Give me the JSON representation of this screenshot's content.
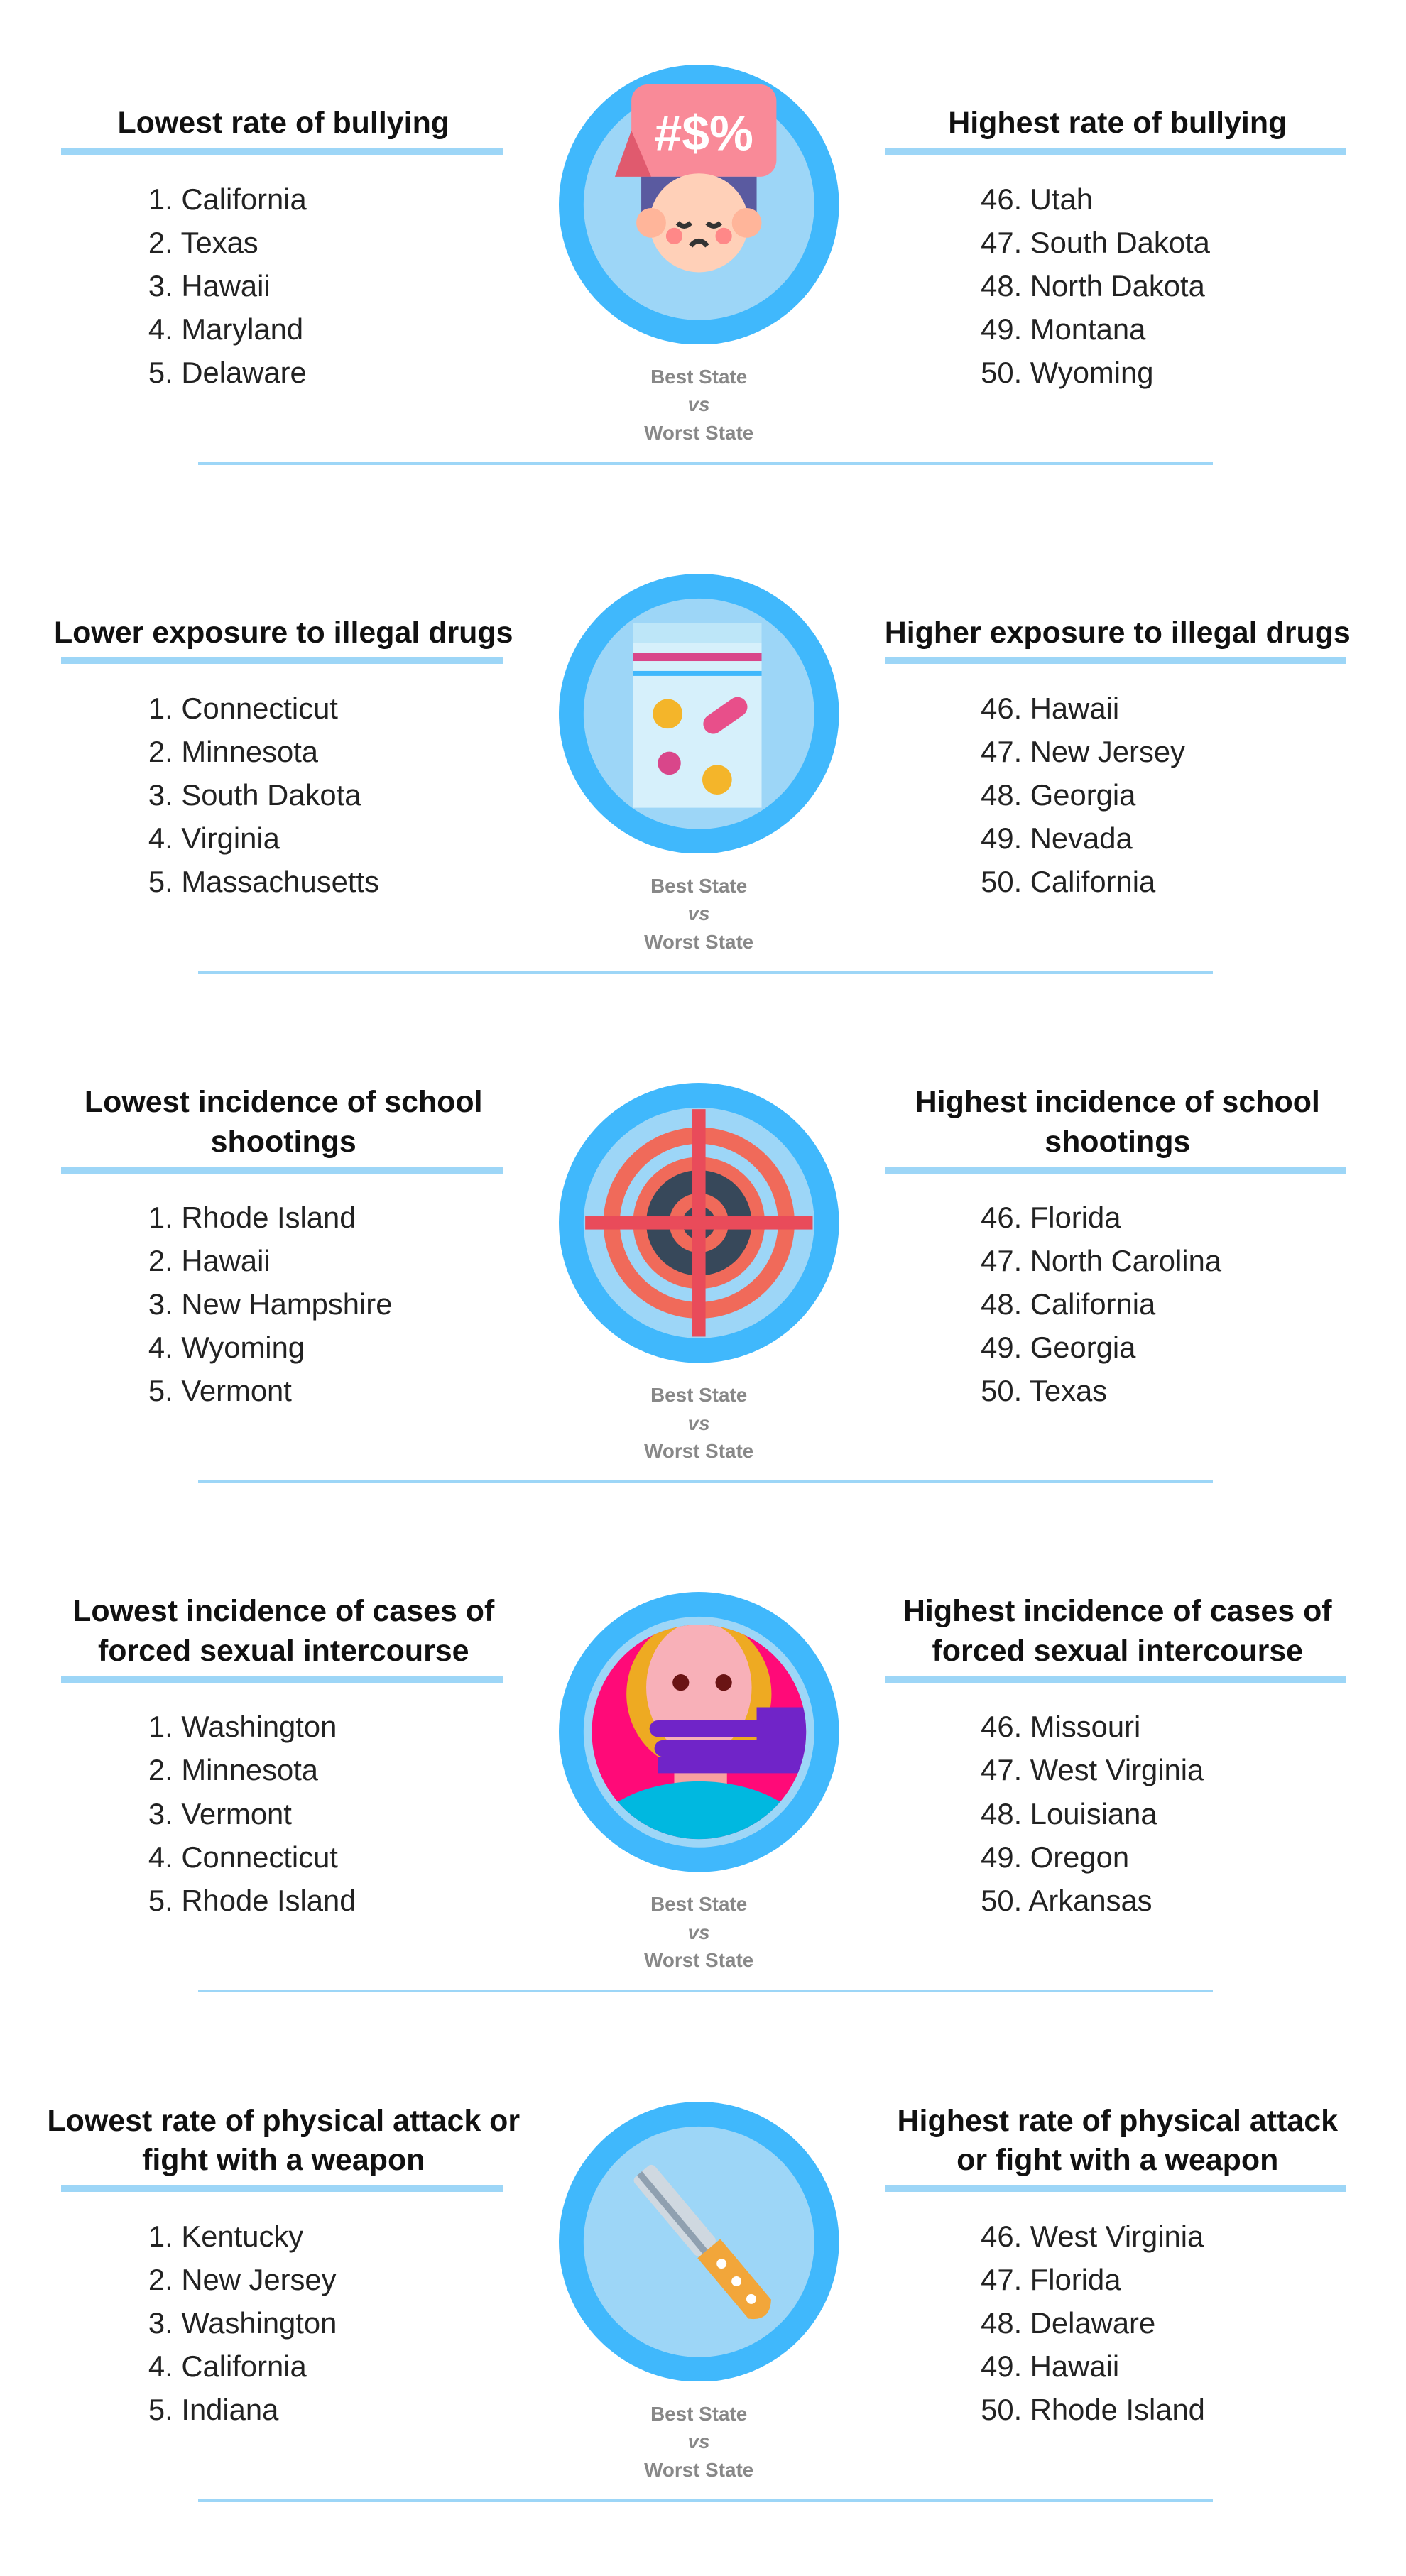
{
  "colors": {
    "accent": "#40b8fc",
    "accent_light": "#9dd6f7",
    "caption": "#888888"
  },
  "caption": {
    "best": "Best State",
    "vs": "vs",
    "worst": "Worst State"
  },
  "sections": [
    {
      "icon": "bullying-speech-bubble-icon",
      "left_title": "Lowest rate of bullying",
      "right_title": "Highest rate of bullying",
      "best": [
        "1. California",
        "2. Texas",
        "3. Hawaii",
        "4. Maryland",
        "5. Delaware"
      ],
      "worst": [
        "46. Utah",
        "47. South Dakota",
        "48. North Dakota",
        "49. Montana",
        "50. Wyoming"
      ]
    },
    {
      "icon": "drug-pills-bag-icon",
      "left_title": "Lower exposure to illegal drugs",
      "right_title": "Higher exposure to illegal drugs",
      "best": [
        "1. Connecticut",
        "2. Minnesota",
        "3. South Dakota",
        "4. Virginia",
        "5. Massachusetts"
      ],
      "worst": [
        "46. Hawaii",
        "47. New Jersey",
        "48. Georgia",
        "49. Nevada",
        "50. California"
      ]
    },
    {
      "icon": "target-crosshair-icon",
      "left_title": "Lowest incidence of school shootings",
      "right_title": "Highest incidence of school shootings",
      "best": [
        "1. Rhode Island",
        "2. Hawaii",
        "3. New Hampshire",
        "4. Wyoming",
        "5. Vermont"
      ],
      "worst": [
        "46. Florida",
        "47. North Carolina",
        "48. California",
        "49. Georgia",
        "50. Texas"
      ]
    },
    {
      "icon": "hand-over-mouth-icon",
      "left_title": "Lowest incidence of cases of forced sexual intercourse",
      "right_title": "Highest incidence of cases of forced sexual intercourse",
      "best": [
        "1. Washington",
        "2. Minnesota",
        "3. Vermont",
        "4. Connecticut",
        "5. Rhode Island"
      ],
      "worst": [
        "46. Missouri",
        "47. West Virginia",
        "48. Louisiana",
        "49. Oregon",
        "50. Arkansas"
      ]
    },
    {
      "icon": "knife-icon",
      "left_title": "Lowest rate of physical attack or fight with a weapon",
      "right_title": "Highest rate of physical attack or fight with a weapon",
      "best": [
        "1. Kentucky",
        "2. New Jersey",
        "3. Washington",
        "4. California",
        "5. Indiana"
      ],
      "worst": [
        "46. West Virginia",
        "47. Florida",
        "48. Delaware",
        "49. Hawaii",
        "50. Rhode Island"
      ]
    }
  ]
}
